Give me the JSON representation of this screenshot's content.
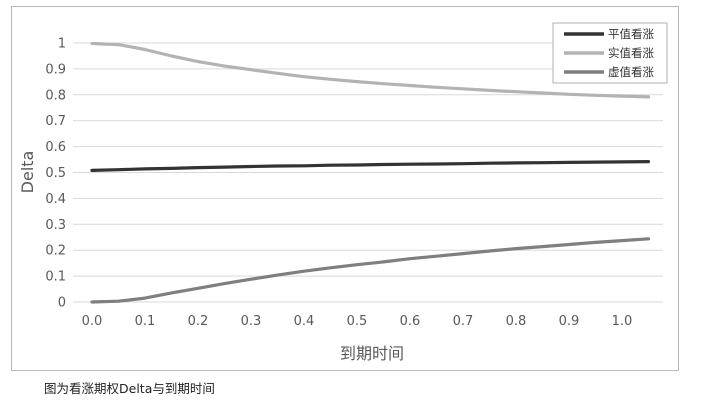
{
  "chart_data": {
    "type": "line",
    "title": "",
    "xlabel": "到期时间",
    "ylabel": "Delta",
    "xlim": [
      0.0,
      1.05
    ],
    "ylim": [
      0,
      1
    ],
    "x_ticks": [
      "0.0",
      "0.1",
      "0.2",
      "0.3",
      "0.4",
      "0.5",
      "0.6",
      "0.7",
      "0.8",
      "0.9",
      "1.0"
    ],
    "y_ticks": [
      "0",
      "0.1",
      "0.2",
      "0.3",
      "0.4",
      "0.5",
      "0.6",
      "0.7",
      "0.8",
      "0.9",
      "1"
    ],
    "grid": "horizontal",
    "legend_position": "top-right",
    "x": [
      0.0,
      0.05,
      0.1,
      0.15,
      0.2,
      0.25,
      0.3,
      0.35,
      0.4,
      0.45,
      0.5,
      0.55,
      0.6,
      0.65,
      0.7,
      0.75,
      0.8,
      0.85,
      0.9,
      0.95,
      1.0,
      1.05
    ],
    "series": [
      {
        "name": "平值看涨",
        "color": "#333333",
        "values": [
          0.508,
          0.511,
          0.514,
          0.516,
          0.519,
          0.521,
          0.523,
          0.525,
          0.526,
          0.528,
          0.529,
          0.531,
          0.532,
          0.533,
          0.534,
          0.536,
          0.537,
          0.538,
          0.539,
          0.54,
          0.541,
          0.542
        ]
      },
      {
        "name": "实值看涨",
        "color": "#b3b3b3",
        "values": [
          0.998,
          0.994,
          0.975,
          0.95,
          0.928,
          0.911,
          0.897,
          0.883,
          0.87,
          0.86,
          0.851,
          0.843,
          0.836,
          0.829,
          0.823,
          0.817,
          0.812,
          0.807,
          0.802,
          0.798,
          0.795,
          0.792
        ]
      },
      {
        "name": "虚值看涨",
        "color": "#7f7f7f",
        "values": [
          0.0,
          0.003,
          0.015,
          0.035,
          0.053,
          0.071,
          0.088,
          0.104,
          0.119,
          0.132,
          0.144,
          0.155,
          0.167,
          0.177,
          0.187,
          0.197,
          0.206,
          0.214,
          0.222,
          0.23,
          0.237,
          0.244
        ]
      }
    ]
  },
  "caption": "图为看涨期权Delta与到期时间"
}
